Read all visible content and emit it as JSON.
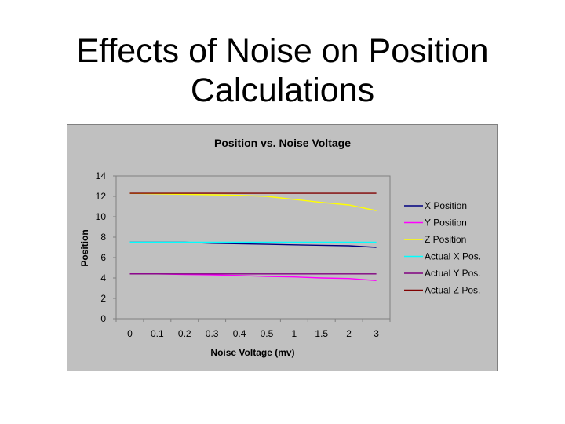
{
  "slide": {
    "title_line1": "Effects of Noise on Position",
    "title_line2": "Calculations"
  },
  "chart_data": {
    "type": "line",
    "title": "Position vs. Noise Voltage",
    "xlabel": "Noise Voltage (mv)",
    "ylabel": "Position",
    "categories": [
      "0",
      "0.1",
      "0.2",
      "0.3",
      "0.4",
      "0.5",
      "1",
      "1.5",
      "2",
      "3"
    ],
    "ylim": [
      0,
      14
    ],
    "yticks": [
      0,
      2,
      4,
      6,
      8,
      10,
      12,
      14
    ],
    "grid": "horizontal-top-only",
    "legend_position": "right",
    "series": [
      {
        "name": "X Position",
        "color": "#000080",
        "values": [
          7.5,
          7.5,
          7.5,
          7.4,
          7.35,
          7.3,
          7.25,
          7.2,
          7.15,
          7.0
        ]
      },
      {
        "name": "Y Position",
        "color": "#ff00ff",
        "values": [
          4.4,
          4.4,
          4.35,
          4.3,
          4.25,
          4.15,
          4.1,
          4.0,
          3.95,
          3.75
        ]
      },
      {
        "name": "Z Position",
        "color": "#ffff00",
        "values": [
          12.3,
          12.25,
          12.2,
          12.15,
          12.1,
          12.0,
          11.7,
          11.4,
          11.15,
          10.6
        ]
      },
      {
        "name": "Actual X Pos.",
        "color": "#00ffff",
        "values": [
          7.5,
          7.5,
          7.5,
          7.5,
          7.5,
          7.5,
          7.5,
          7.5,
          7.5,
          7.5
        ]
      },
      {
        "name": "Actual Y Pos.",
        "color": "#800080",
        "values": [
          4.4,
          4.4,
          4.4,
          4.4,
          4.4,
          4.4,
          4.4,
          4.4,
          4.4,
          4.4
        ]
      },
      {
        "name": "Actual Z Pos.",
        "color": "#800000",
        "values": [
          12.3,
          12.3,
          12.3,
          12.3,
          12.3,
          12.3,
          12.3,
          12.3,
          12.3,
          12.3
        ]
      }
    ]
  },
  "colors": {
    "panel_background": "#c0c0c0",
    "plot_background": "#c0c0c0"
  }
}
